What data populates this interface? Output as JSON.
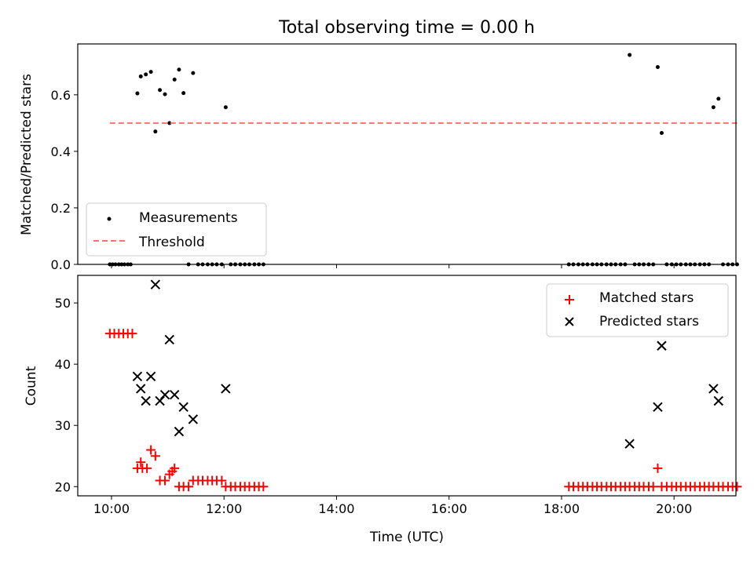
{
  "title": "Total observing time = 0.00 h",
  "chart_data": [
    {
      "type": "scatter",
      "ylabel": "Matched/Predicted stars",
      "xlabel": "",
      "xlim": [
        9.4,
        21.1
      ],
      "ylim": [
        0,
        0.78
      ],
      "x_ticks": [
        10,
        12,
        14,
        16,
        18,
        20
      ],
      "y_ticks": [
        0.0,
        0.2,
        0.4,
        0.6
      ],
      "y_tick_labels": [
        "0.0",
        "0.2",
        "0.4",
        "0.6"
      ],
      "legend_position": "lower-left",
      "series": [
        {
          "name": "Measurements",
          "color": "#000000",
          "marker": "dot",
          "points": [
            [
              9.97,
              0
            ],
            [
              10.02,
              0
            ],
            [
              10.07,
              0
            ],
            [
              10.13,
              0
            ],
            [
              10.18,
              0
            ],
            [
              10.23,
              0
            ],
            [
              10.29,
              0
            ],
            [
              10.34,
              0
            ],
            [
              10.46,
              0.605
            ],
            [
              10.52,
              0.665
            ],
            [
              10.61,
              0.672
            ],
            [
              10.7,
              0.681
            ],
            [
              10.78,
              0.47
            ],
            [
              10.86,
              0.617
            ],
            [
              10.95,
              0.602
            ],
            [
              11.03,
              0.5
            ],
            [
              11.12,
              0.654
            ],
            [
              11.2,
              0.689
            ],
            [
              11.28,
              0.606
            ],
            [
              11.45,
              0.677
            ],
            [
              12.03,
              0.556
            ],
            [
              11.37,
              0
            ],
            [
              11.54,
              0
            ],
            [
              11.62,
              0
            ],
            [
              11.71,
              0
            ],
            [
              11.79,
              0
            ],
            [
              11.87,
              0
            ],
            [
              11.96,
              0
            ],
            [
              12.12,
              0
            ],
            [
              12.2,
              0
            ],
            [
              12.29,
              0
            ],
            [
              12.37,
              0
            ],
            [
              12.45,
              0
            ],
            [
              12.54,
              0
            ],
            [
              12.62,
              0
            ],
            [
              12.7,
              0
            ],
            [
              18.13,
              0
            ],
            [
              18.21,
              0
            ],
            [
              18.3,
              0
            ],
            [
              18.38,
              0
            ],
            [
              18.46,
              0
            ],
            [
              18.55,
              0
            ],
            [
              18.63,
              0
            ],
            [
              18.71,
              0
            ],
            [
              18.8,
              0
            ],
            [
              18.88,
              0
            ],
            [
              18.96,
              0
            ],
            [
              19.05,
              0
            ],
            [
              19.13,
              0
            ],
            [
              19.3,
              0
            ],
            [
              19.38,
              0
            ],
            [
              19.46,
              0
            ],
            [
              19.55,
              0
            ],
            [
              19.63,
              0
            ],
            [
              19.87,
              0
            ],
            [
              19.96,
              0
            ],
            [
              20.04,
              0
            ],
            [
              20.12,
              0
            ],
            [
              20.21,
              0
            ],
            [
              20.29,
              0
            ],
            [
              20.37,
              0
            ],
            [
              20.46,
              0
            ],
            [
              20.54,
              0
            ],
            [
              20.62,
              0
            ],
            [
              20.87,
              0
            ],
            [
              20.96,
              0
            ],
            [
              21.04,
              0
            ],
            [
              21.12,
              0
            ],
            [
              19.21,
              0.741
            ],
            [
              19.71,
              0.698
            ],
            [
              19.78,
              0.465
            ],
            [
              20.7,
              0.556
            ],
            [
              20.79,
              0.586
            ]
          ]
        },
        {
          "name": "Threshold",
          "color": "#ff7070",
          "style": "dashed",
          "x": [
            9.97,
            21.12
          ],
          "y": [
            0.5,
            0.5
          ]
        }
      ]
    },
    {
      "type": "scatter",
      "ylabel": "Count",
      "xlabel": "Time (UTC)",
      "xlim": [
        9.4,
        21.1
      ],
      "ylim": [
        18.5,
        54.5
      ],
      "x_ticks": [
        10,
        12,
        14,
        16,
        18,
        20
      ],
      "x_tick_labels": [
        "10:00",
        "12:00",
        "14:00",
        "16:00",
        "18:00",
        "20:00"
      ],
      "y_ticks": [
        20,
        30,
        40,
        50
      ],
      "y_tick_labels": [
        "20",
        "30",
        "40",
        "50"
      ],
      "legend_position": "upper-right",
      "series": [
        {
          "name": "Matched stars",
          "color": "#ff0000",
          "marker": "plus",
          "points": [
            [
              9.97,
              45
            ],
            [
              10.05,
              45
            ],
            [
              10.13,
              45
            ],
            [
              10.21,
              45
            ],
            [
              10.29,
              45
            ],
            [
              10.37,
              45
            ],
            [
              10.46,
              23
            ],
            [
              10.52,
              24
            ],
            [
              10.55,
              23
            ],
            [
              10.63,
              23
            ],
            [
              10.7,
              26
            ],
            [
              10.78,
              25
            ],
            [
              10.86,
              21
            ],
            [
              10.95,
              21
            ],
            [
              11.03,
              22
            ],
            [
              11.08,
              22.5
            ],
            [
              11.12,
              23
            ],
            [
              11.2,
              20
            ],
            [
              11.28,
              20
            ],
            [
              11.37,
              20
            ],
            [
              11.45,
              21
            ],
            [
              11.54,
              21
            ],
            [
              11.62,
              21
            ],
            [
              11.71,
              21
            ],
            [
              11.79,
              21
            ],
            [
              11.87,
              21
            ],
            [
              11.96,
              21
            ],
            [
              12.03,
              20
            ],
            [
              12.12,
              20
            ],
            [
              12.2,
              20
            ],
            [
              12.29,
              20
            ],
            [
              12.37,
              20
            ],
            [
              12.45,
              20
            ],
            [
              12.54,
              20
            ],
            [
              12.62,
              20
            ],
            [
              12.7,
              20
            ],
            [
              18.13,
              20
            ],
            [
              18.21,
              20
            ],
            [
              18.3,
              20
            ],
            [
              18.38,
              20
            ],
            [
              18.46,
              20
            ],
            [
              18.55,
              20
            ],
            [
              18.63,
              20
            ],
            [
              18.71,
              20
            ],
            [
              18.8,
              20
            ],
            [
              18.88,
              20
            ],
            [
              18.96,
              20
            ],
            [
              19.05,
              20
            ],
            [
              19.13,
              20
            ],
            [
              19.21,
              20
            ],
            [
              19.3,
              20
            ],
            [
              19.38,
              20
            ],
            [
              19.46,
              20
            ],
            [
              19.55,
              20
            ],
            [
              19.63,
              20
            ],
            [
              19.71,
              23
            ],
            [
              19.78,
              20
            ],
            [
              19.87,
              20
            ],
            [
              19.96,
              20
            ],
            [
              20.04,
              20
            ],
            [
              20.12,
              20
            ],
            [
              20.21,
              20
            ],
            [
              20.29,
              20
            ],
            [
              20.37,
              20
            ],
            [
              20.46,
              20
            ],
            [
              20.54,
              20
            ],
            [
              20.62,
              20
            ],
            [
              20.7,
              20
            ],
            [
              20.79,
              20
            ],
            [
              20.87,
              20
            ],
            [
              20.96,
              20
            ],
            [
              21.04,
              20
            ],
            [
              21.12,
              20
            ]
          ]
        },
        {
          "name": "Predicted stars",
          "color": "#000000",
          "marker": "x",
          "points": [
            [
              10.46,
              38
            ],
            [
              10.52,
              36
            ],
            [
              10.61,
              34
            ],
            [
              10.7,
              38
            ],
            [
              10.78,
              53
            ],
            [
              10.86,
              34
            ],
            [
              10.95,
              35
            ],
            [
              11.03,
              44
            ],
            [
              11.12,
              35
            ],
            [
              11.2,
              29
            ],
            [
              11.28,
              33
            ],
            [
              11.45,
              31
            ],
            [
              12.03,
              36
            ],
            [
              19.21,
              27
            ],
            [
              19.71,
              33
            ],
            [
              19.78,
              43
            ],
            [
              20.7,
              36
            ],
            [
              20.79,
              34
            ]
          ]
        }
      ]
    }
  ]
}
